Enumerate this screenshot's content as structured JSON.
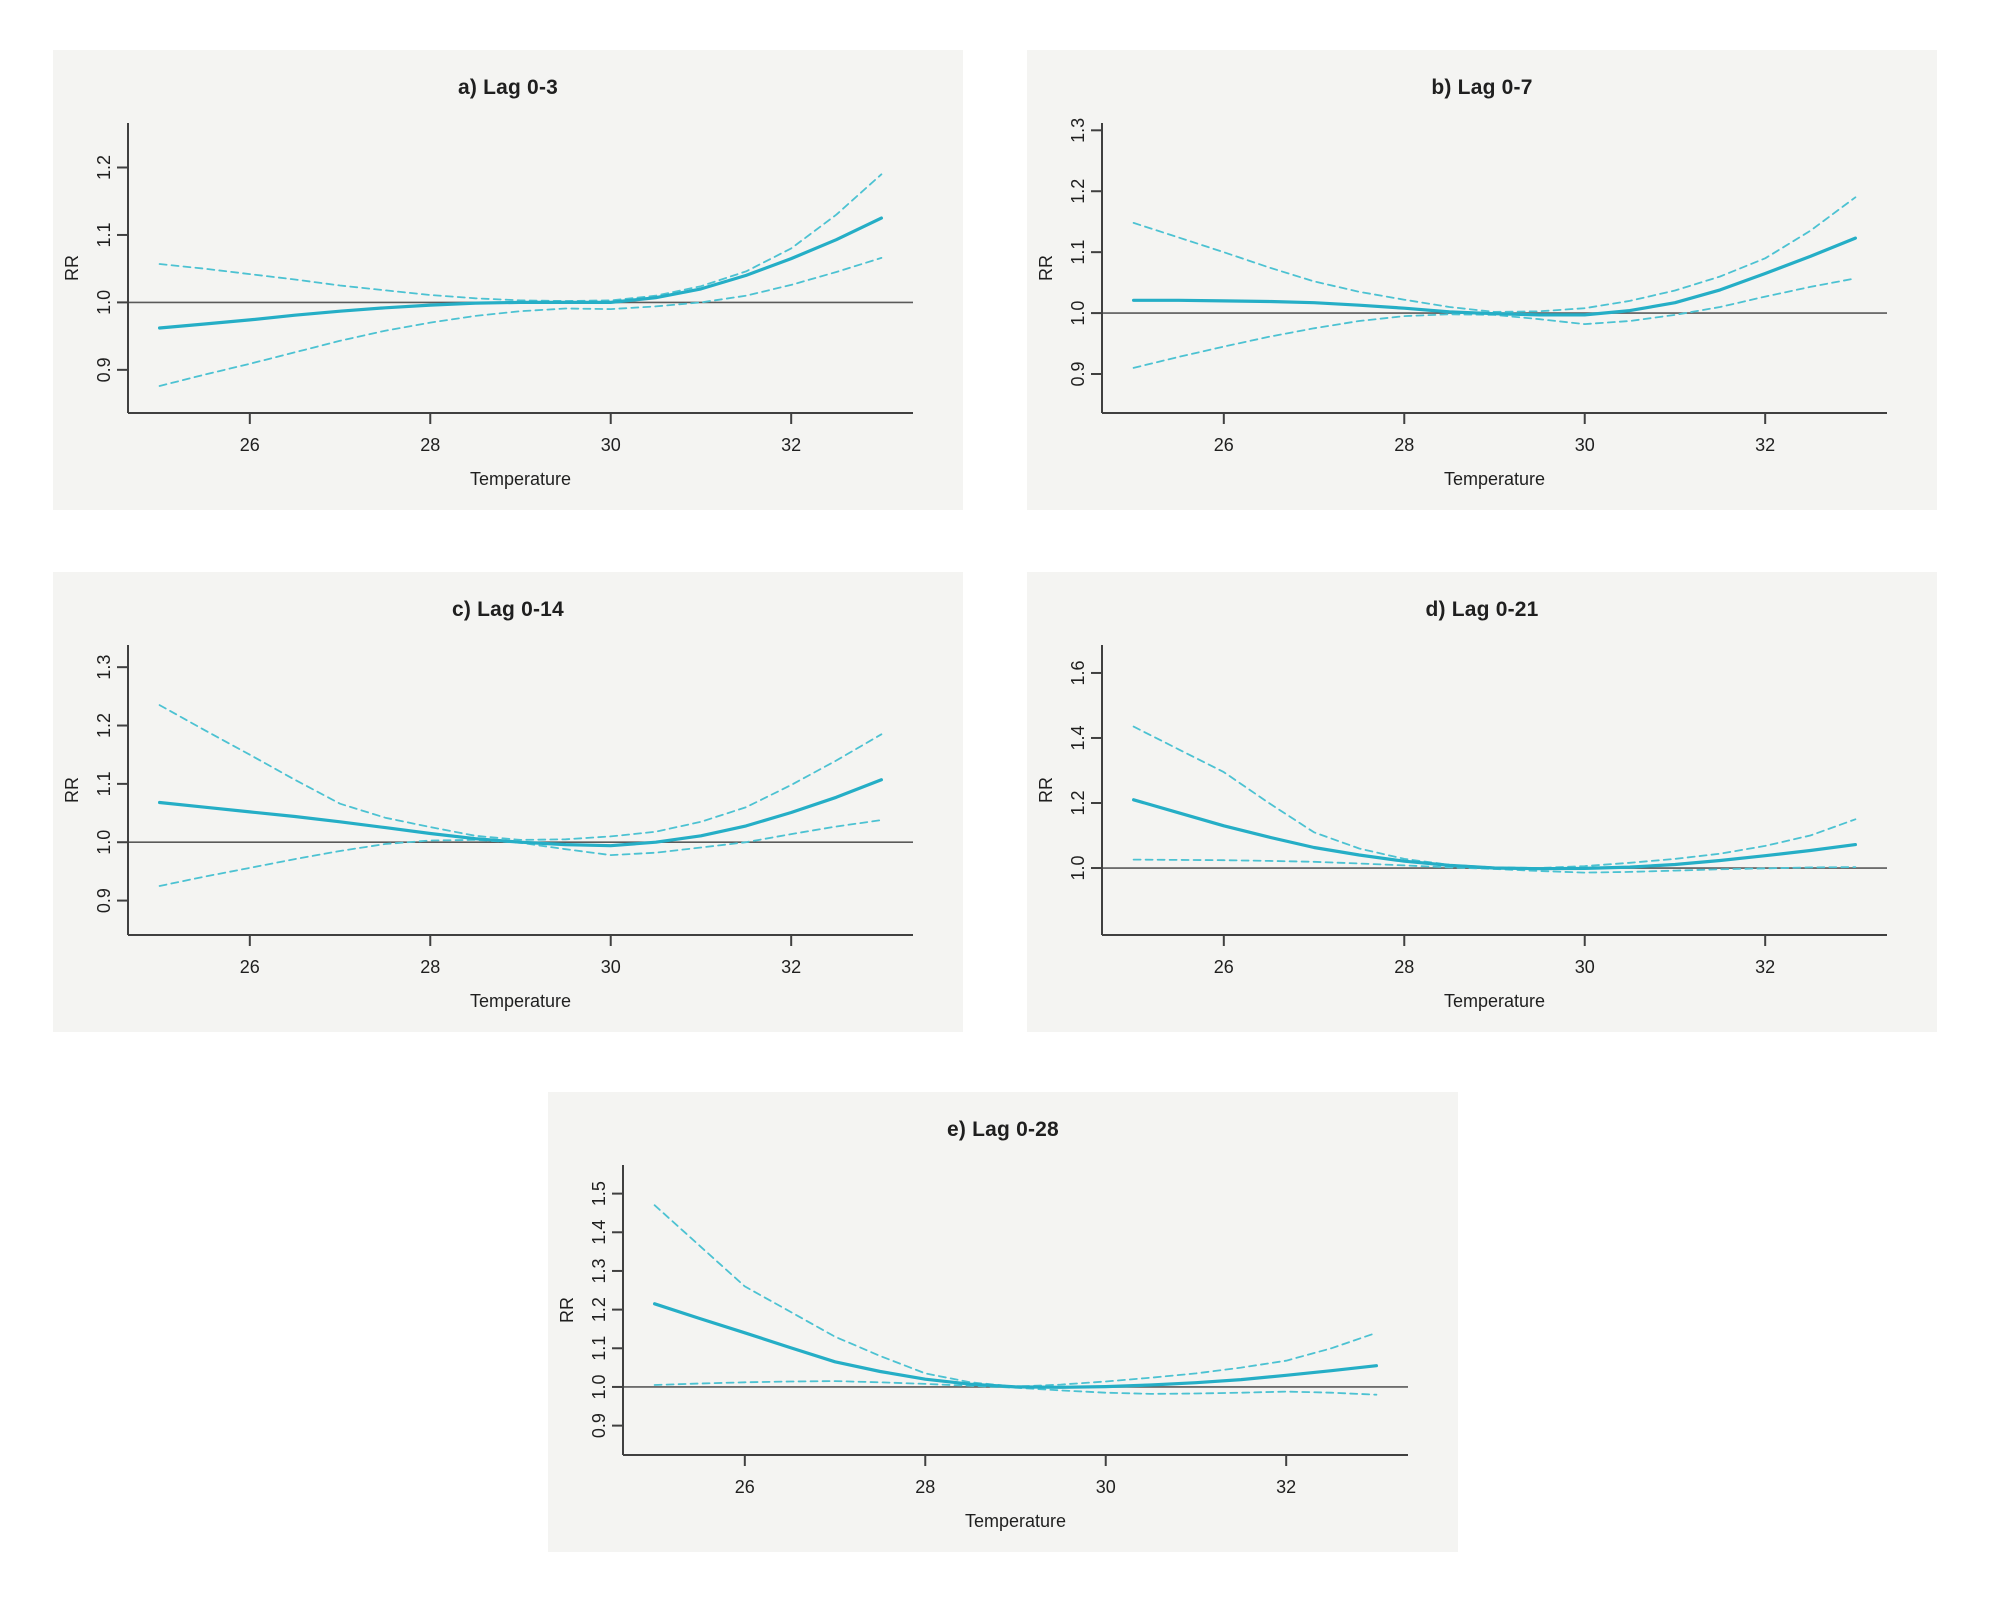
{
  "figure": {
    "description": "Exposure-response curves of relative risk (RR) versus Temperature at cumulative lags",
    "background": "#ffffff",
    "panel_background": "#f4f4f2"
  },
  "styles": {
    "line_color": "#25aec6",
    "ci_color": "#4cc2d2",
    "axis_color": "#404040",
    "ref_line_color": "#5a5a5a",
    "text_color": "#1f1f1f"
  },
  "chart_data": [
    {
      "type": "line",
      "title": "a) Lag 0-3",
      "xlabel": "Temperature",
      "ylabel": "RR",
      "grid": false,
      "legend": "none",
      "ref_line_y": 1.0,
      "xlim": [
        24.65,
        33.35
      ],
      "ylim": [
        0.836,
        1.266
      ],
      "xticks": [
        26,
        28,
        30,
        32
      ],
      "yticks": [
        0.9,
        1.0,
        1.1,
        1.2
      ],
      "x": [
        25,
        25.5,
        26,
        26.5,
        27,
        27.5,
        28,
        28.5,
        29,
        29.5,
        30,
        30.5,
        31,
        31.5,
        32,
        32.5,
        33
      ],
      "series": [
        {
          "name": "RR estimate",
          "style": "solid",
          "values": [
            0.962,
            0.968,
            0.974,
            0.981,
            0.987,
            0.992,
            0.996,
            0.999,
            1.0,
            1.0,
            1.0,
            1.007,
            1.02,
            1.04,
            1.065,
            1.093,
            1.125
          ]
        },
        {
          "name": "95% CI upper",
          "style": "dashed",
          "values": [
            1.057,
            1.05,
            1.042,
            1.034,
            1.025,
            1.018,
            1.011,
            1.006,
            1.003,
            1.002,
            1.003,
            1.01,
            1.024,
            1.046,
            1.08,
            1.13,
            1.19
          ]
        },
        {
          "name": "95% CI lower",
          "style": "dashed",
          "values": [
            0.876,
            0.893,
            0.909,
            0.926,
            0.943,
            0.958,
            0.97,
            0.98,
            0.987,
            0.991,
            0.99,
            0.994,
            1.0,
            1.01,
            1.026,
            1.045,
            1.066
          ]
        }
      ]
    },
    {
      "type": "line",
      "title": "b) Lag 0-7",
      "xlabel": "Temperature",
      "ylabel": "RR",
      "grid": false,
      "legend": "none",
      "ref_line_y": 1.0,
      "xlim": [
        24.65,
        33.35
      ],
      "ylim": [
        0.836,
        1.312
      ],
      "xticks": [
        26,
        28,
        30,
        32
      ],
      "yticks": [
        0.9,
        1.0,
        1.1,
        1.2,
        1.3
      ],
      "x": [
        25,
        25.5,
        26,
        26.5,
        27,
        27.5,
        28,
        28.5,
        29,
        29.5,
        30,
        30.5,
        31,
        31.5,
        32,
        32.5,
        33
      ],
      "series": [
        {
          "name": "RR estimate",
          "style": "solid",
          "values": [
            1.021,
            1.021,
            1.02,
            1.019,
            1.017,
            1.013,
            1.008,
            1.002,
            0.999,
            0.997,
            0.997,
            1.004,
            1.017,
            1.038,
            1.065,
            1.093,
            1.123
          ]
        },
        {
          "name": "95% CI upper",
          "style": "dashed",
          "values": [
            1.148,
            1.124,
            1.1,
            1.075,
            1.052,
            1.035,
            1.022,
            1.01,
            1.002,
            1.003,
            1.008,
            1.02,
            1.037,
            1.06,
            1.09,
            1.135,
            1.19
          ]
        },
        {
          "name": "95% CI lower",
          "style": "dashed",
          "values": [
            0.91,
            0.928,
            0.945,
            0.961,
            0.975,
            0.987,
            0.995,
            0.998,
            0.997,
            0.99,
            0.982,
            0.987,
            0.997,
            1.01,
            1.027,
            1.043,
            1.057
          ]
        }
      ]
    },
    {
      "type": "line",
      "title": "c) Lag 0-14",
      "xlabel": "Temperature",
      "ylabel": "RR",
      "grid": false,
      "legend": "none",
      "ref_line_y": 1.0,
      "xlim": [
        24.65,
        33.35
      ],
      "ylim": [
        0.841,
        1.338
      ],
      "xticks": [
        26,
        28,
        30,
        32
      ],
      "yticks": [
        0.9,
        1.0,
        1.1,
        1.2,
        1.3
      ],
      "x": [
        25,
        25.5,
        26,
        26.5,
        27,
        27.5,
        28,
        28.5,
        29,
        29.5,
        30,
        30.5,
        31,
        31.5,
        32,
        32.5,
        33
      ],
      "series": [
        {
          "name": "RR estimate",
          "style": "solid",
          "values": [
            1.068,
            1.06,
            1.052,
            1.044,
            1.035,
            1.025,
            1.015,
            1.006,
            1.0,
            0.996,
            0.994,
            1.0,
            1.011,
            1.028,
            1.051,
            1.077,
            1.107
          ]
        },
        {
          "name": "95% CI upper",
          "style": "dashed",
          "values": [
            1.235,
            1.192,
            1.15,
            1.107,
            1.066,
            1.042,
            1.026,
            1.011,
            1.004,
            1.005,
            1.01,
            1.018,
            1.035,
            1.06,
            1.098,
            1.14,
            1.185
          ]
        },
        {
          "name": "95% CI lower",
          "style": "dashed",
          "values": [
            0.925,
            0.941,
            0.956,
            0.971,
            0.985,
            0.997,
            1.003,
            1.004,
            0.999,
            0.988,
            0.978,
            0.982,
            0.991,
            1.0,
            1.014,
            1.027,
            1.038
          ]
        }
      ]
    },
    {
      "type": "line",
      "title": "d) Lag 0-21",
      "xlabel": "Temperature",
      "ylabel": "RR",
      "grid": false,
      "legend": "none",
      "ref_line_y": 1.0,
      "xlim": [
        24.65,
        33.35
      ],
      "ylim": [
        0.794,
        1.686
      ],
      "xticks": [
        26,
        28,
        30,
        32
      ],
      "yticks": [
        1.0,
        1.2,
        1.4,
        1.6
      ],
      "x": [
        25,
        25.5,
        26,
        26.5,
        27,
        27.5,
        28,
        28.5,
        29,
        29.5,
        30,
        30.5,
        31,
        31.5,
        32,
        32.5,
        33
      ],
      "series": [
        {
          "name": "RR estimate",
          "style": "solid",
          "values": [
            1.21,
            1.17,
            1.13,
            1.095,
            1.063,
            1.04,
            1.021,
            1.008,
            1.0,
            0.998,
            0.999,
            1.003,
            1.011,
            1.023,
            1.038,
            1.054,
            1.072
          ]
        },
        {
          "name": "95% CI upper",
          "style": "dashed",
          "values": [
            1.435,
            1.365,
            1.295,
            1.2,
            1.11,
            1.06,
            1.028,
            1.01,
            1.002,
            1.0,
            1.006,
            1.016,
            1.028,
            1.044,
            1.068,
            1.1,
            1.15
          ]
        },
        {
          "name": "95% CI lower",
          "style": "dashed",
          "values": [
            1.026,
            1.025,
            1.024,
            1.022,
            1.019,
            1.014,
            1.008,
            1.002,
            0.997,
            0.991,
            0.986,
            0.988,
            0.992,
            0.996,
            0.999,
            1.002,
            1.003
          ]
        }
      ]
    },
    {
      "type": "line",
      "title": "e) Lag 0-28",
      "xlabel": "Temperature",
      "ylabel": "RR",
      "grid": false,
      "legend": "none",
      "ref_line_y": 1.0,
      "xlim": [
        24.65,
        33.35
      ],
      "ylim": [
        0.824,
        1.574
      ],
      "xticks": [
        26,
        28,
        30,
        32
      ],
      "yticks": [
        0.9,
        1.0,
        1.1,
        1.2,
        1.3,
        1.4,
        1.5
      ],
      "x": [
        25,
        25.5,
        26,
        26.5,
        27,
        27.5,
        28,
        28.5,
        29,
        29.5,
        30,
        30.5,
        31,
        31.5,
        32,
        32.5,
        33
      ],
      "series": [
        {
          "name": "RR estimate",
          "style": "solid",
          "values": [
            1.215,
            1.177,
            1.14,
            1.102,
            1.065,
            1.04,
            1.02,
            1.007,
            1.0,
            0.999,
            1.001,
            1.005,
            1.011,
            1.019,
            1.03,
            1.042,
            1.055
          ]
        },
        {
          "name": "95% CI upper",
          "style": "dashed",
          "values": [
            1.47,
            1.365,
            1.26,
            1.195,
            1.13,
            1.08,
            1.035,
            1.012,
            1.001,
            1.006,
            1.014,
            1.024,
            1.035,
            1.05,
            1.068,
            1.1,
            1.14
          ]
        },
        {
          "name": "95% CI lower",
          "style": "dashed",
          "values": [
            1.005,
            1.009,
            1.012,
            1.014,
            1.015,
            1.012,
            1.008,
            1.003,
            0.998,
            0.991,
            0.985,
            0.982,
            0.983,
            0.985,
            0.988,
            0.985,
            0.98
          ]
        }
      ]
    }
  ]
}
